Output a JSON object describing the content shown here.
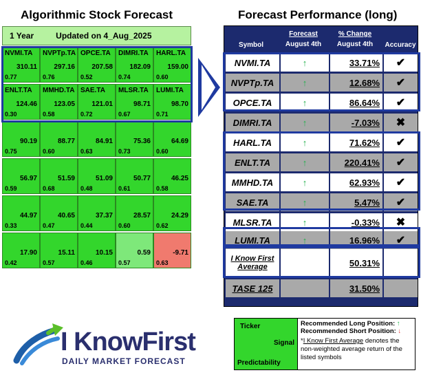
{
  "left_title": "Algorithmic Stock Forecast",
  "right_title": "Forecast Performance (long)",
  "topbar": {
    "period": "1 Year",
    "updated": "Updated on 4_Aug_2025"
  },
  "grid": [
    [
      {
        "ticker": "NVMI.TA",
        "value": "310.11",
        "pred": "0.77"
      },
      {
        "ticker": "NVPTp.TA",
        "value": "297.16",
        "pred": "0.76"
      },
      {
        "ticker": "OPCE.TA",
        "value": "207.58",
        "pred": "0.52"
      },
      {
        "ticker": "DIMRI.TA",
        "value": "182.09",
        "pred": "0.74"
      },
      {
        "ticker": "HARL.TA",
        "value": "159.00",
        "pred": "0.60"
      }
    ],
    [
      {
        "ticker": "ENLT.TA",
        "value": "124.46",
        "pred": "0.30"
      },
      {
        "ticker": "MMHD.TA",
        "value": "123.05",
        "pred": "0.58"
      },
      {
        "ticker": "SAE.TA",
        "value": "121.01",
        "pred": "0.72"
      },
      {
        "ticker": "MLSR.TA",
        "value": "98.71",
        "pred": "0.67"
      },
      {
        "ticker": "LUMI.TA",
        "value": "98.70",
        "pred": "0.71"
      }
    ],
    [
      {
        "ticker": "",
        "value": "90.19",
        "pred": "0.75"
      },
      {
        "ticker": "",
        "value": "88.77",
        "pred": "0.60"
      },
      {
        "ticker": "",
        "value": "84.91",
        "pred": "0.63"
      },
      {
        "ticker": "",
        "value": "75.36",
        "pred": "0.73"
      },
      {
        "ticker": "",
        "value": "64.69",
        "pred": "0.60"
      }
    ],
    [
      {
        "ticker": "",
        "value": "56.97",
        "pred": "0.59"
      },
      {
        "ticker": "",
        "value": "51.59",
        "pred": "0.68"
      },
      {
        "ticker": "",
        "value": "51.09",
        "pred": "0.48"
      },
      {
        "ticker": "",
        "value": "50.77",
        "pred": "0.61"
      },
      {
        "ticker": "",
        "value": "46.25",
        "pred": "0.58"
      }
    ],
    [
      {
        "ticker": "",
        "value": "44.97",
        "pred": "0.33"
      },
      {
        "ticker": "",
        "value": "40.65",
        "pred": "0.47"
      },
      {
        "ticker": "",
        "value": "37.37",
        "pred": "0.44"
      },
      {
        "ticker": "",
        "value": "28.57",
        "pred": "0.60"
      },
      {
        "ticker": "",
        "value": "24.29",
        "pred": "0.62"
      }
    ],
    [
      {
        "ticker": "",
        "value": "17.90",
        "pred": "0.42"
      },
      {
        "ticker": "",
        "value": "15.11",
        "pred": "0.57"
      },
      {
        "ticker": "",
        "value": "10.15",
        "pred": "0.46"
      },
      {
        "ticker": "",
        "value": "0.59",
        "pred": "0.57"
      },
      {
        "ticker": "",
        "value": "-9.71",
        "pred": "0.63"
      }
    ]
  ],
  "colors": {
    "strong_green": "#33d62c",
    "light_green": "#7ee87a",
    "red": "#f07a6e",
    "navy": "#1c2a6e",
    "frame_blue": "#1f3aa0",
    "arrow_green": "#22b14c"
  },
  "table": {
    "headers": {
      "symbol": "Symbol",
      "forecast_1": "Forecast",
      "forecast_2": "August 4th",
      "change_1": "% Change",
      "change_2": "August 4th",
      "accuracy": "Accuracy"
    },
    "rows": [
      {
        "symbol": "NVMI.TA",
        "change": "33.71%",
        "accuracy": "✔"
      },
      {
        "symbol": "NVPTp.TA",
        "change": "12.68%",
        "accuracy": "✔"
      },
      {
        "symbol": "OPCE.TA",
        "change": "86.64%",
        "accuracy": "✔"
      },
      {
        "symbol": "DIMRI.TA",
        "change": "-7.03%",
        "accuracy": "✖"
      },
      {
        "symbol": "HARL.TA",
        "change": "71.62%",
        "accuracy": "✔"
      },
      {
        "symbol": "ENLT.TA",
        "change": "220.41%",
        "accuracy": "✔"
      },
      {
        "symbol": "MMHD.TA",
        "change": "62.93%",
        "accuracy": "✔"
      },
      {
        "symbol": "SAE.TA",
        "change": "5.47%",
        "accuracy": "✔"
      },
      {
        "symbol": "MLSR.TA",
        "change": "-0.33%",
        "accuracy": "✖"
      },
      {
        "symbol": "LUMI.TA",
        "change": "16.96%",
        "accuracy": "✔"
      }
    ],
    "average": {
      "label_1": "I Know First",
      "label_2": "Average",
      "value": "50.31%"
    },
    "benchmark": {
      "label": "TASE 125",
      "value": "31.50%"
    }
  },
  "logo": {
    "brand": "I KnowFirst",
    "tagline": "DAILY MARKET FORECAST"
  },
  "legend": {
    "ticker": "Ticker",
    "signal": "Signal",
    "predictability": "Predictability",
    "long": "Recommended Long Position:",
    "short": "Recommended Short Position:",
    "note_link": "I Know First Average",
    "note_rest": " denotes the non-weighted average return of the listed symbols"
  }
}
